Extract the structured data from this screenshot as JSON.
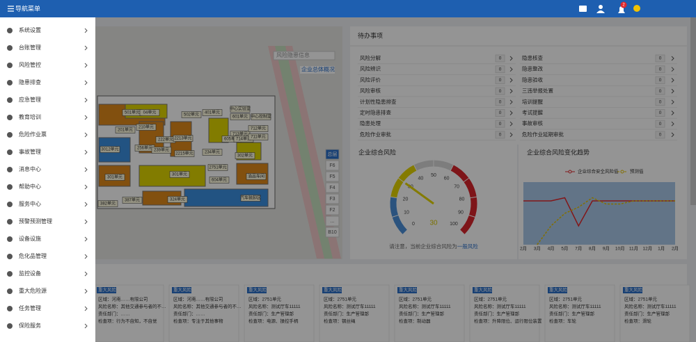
{
  "header": {
    "title": "导航菜单",
    "badge": "2"
  },
  "sidebar": {
    "items": [
      "系统设置",
      "台账管理",
      "风险管控",
      "隐患排查",
      "应急管理",
      "教育培训",
      "危险作业票",
      "事故管理",
      "消息中心",
      "帮助中心",
      "服务中心",
      "预警预测管理",
      "设备设施",
      "危化品管理",
      "监控设备",
      "重大危险源",
      "任务管理",
      "保险服务"
    ]
  },
  "map": {
    "dropdown": "风险隐患信息",
    "overview_button": "企业总体概况",
    "floors": [
      "总层",
      "F6",
      "F5",
      "F4",
      "F3",
      "F2",
      "...",
      "B10"
    ],
    "labels": [
      "501单元",
      "04单元",
      "502单元",
      "401单元",
      "中心实验室",
      "601单元",
      "中心控制室",
      "201单元",
      "210单元",
      "222单元",
      "2213单元",
      "256单元",
      "239单元",
      "2215单元",
      "713单元",
      "712单元",
      "605单元",
      "714单元",
      "711单元",
      "3012单元",
      "234单元",
      "302单元",
      "2751单元",
      "301单元",
      "604单元",
      "油品车间",
      "301单元",
      "382单元",
      "387单元",
      "324单元",
      "汽车装卸区"
    ]
  },
  "todo": {
    "title": "待办事项",
    "left": [
      {
        "label": "风险分解",
        "count": 0
      },
      {
        "label": "风险辨识",
        "count": 0
      },
      {
        "label": "风险评价",
        "count": 0
      },
      {
        "label": "风险审核",
        "count": 0
      },
      {
        "label": "计划性隐患排查",
        "count": 0
      },
      {
        "label": "定时隐患排查",
        "count": 0
      },
      {
        "label": "隐患处理",
        "count": 0
      },
      {
        "label": "危险作业审批",
        "count": 0
      }
    ],
    "right": [
      {
        "label": "隐患核查",
        "count": 0
      },
      {
        "label": "隐患整改",
        "count": 0
      },
      {
        "label": "隐患验收",
        "count": 0
      },
      {
        "label": "三违举报处置",
        "count": 0
      },
      {
        "label": "培训提醒",
        "count": 0
      },
      {
        "label": "考试提醒",
        "count": 0
      },
      {
        "label": "事故审核",
        "count": 0
      },
      {
        "label": "危险作业延期审批",
        "count": 0
      }
    ]
  },
  "chart_data": [
    {
      "type": "gauge",
      "title": "企业综合风险",
      "ylim": [
        0,
        100
      ],
      "yticks": [
        0,
        10,
        20,
        30,
        40,
        50,
        60,
        70,
        80,
        90,
        100
      ],
      "value": 30,
      "bands": [
        {
          "to": 20,
          "color": "#4a90d9"
        },
        {
          "to": 40,
          "color": "#e3d400"
        },
        {
          "to": 60,
          "color": "#d8d8d8"
        },
        {
          "to": 100,
          "color": "#d9252b"
        }
      ],
      "note": "请注意，当前企业综合风险为",
      "level": "一般风险"
    },
    {
      "type": "line",
      "title": "企业综合风险变化趋势",
      "categories": [
        "2月",
        "3月",
        "4月",
        "5月",
        "7月",
        "8月",
        "9月",
        "10月",
        "11月",
        "12月",
        "1月",
        "2月"
      ],
      "ylim": [
        0,
        100
      ],
      "series": [
        {
          "name": "企业综合安全风险值",
          "color": "#e0262b",
          "dash": false,
          "values": [
            70,
            70,
            70,
            75,
            30,
            70,
            70,
            70,
            70,
            70,
            70,
            70
          ]
        },
        {
          "name": "预测值",
          "color": "#e3c000",
          "dash": true,
          "values": [
            null,
            0,
            30,
            50,
            60,
            75,
            65,
            65,
            70,
            70,
            70,
            70
          ]
        }
      ]
    }
  ],
  "risk_cards": [
    {
      "tag": "重大风险",
      "lines": [
        "区域：河南……有限公司",
        "风险名称：其他交通参与者的不…",
        "责任部门：……",
        "检查项：行为不自知，不自觉"
      ]
    },
    {
      "tag": "重大风险",
      "lines": [
        "区域：河南……有限公司",
        "风险名称：其他交通参与者的不…",
        "责任部门：……",
        "检查项：专注于其他事物"
      ]
    },
    {
      "tag": "重大风险",
      "lines": [
        "区域：2751单元",
        "风险名称：测试厅车11111",
        "责任部门：生产管理部",
        "检查项：电源、操控手柄"
      ]
    },
    {
      "tag": "重大风险",
      "lines": [
        "区域：2751单元",
        "风险名称：测试厅车11111",
        "责任部门：生产管理部",
        "检查项：钢丝绳"
      ]
    },
    {
      "tag": "重大风险",
      "lines": [
        "区域：2751单元",
        "风险名称：测试厅车11111",
        "责任部门：生产管理部",
        "检查项：制动器"
      ]
    },
    {
      "tag": "重大风险",
      "lines": [
        "区域：2751单元",
        "风险名称：测试厅车11111",
        "责任部门：生产管理部",
        "检查项：升降限位、运行限位装置"
      ]
    },
    {
      "tag": "重大风险",
      "lines": [
        "区域：2751单元",
        "风险名称：测试厅车11111",
        "责任部门：生产管理部",
        "检查项：车轮"
      ]
    },
    {
      "tag": "重大风险",
      "lines": [
        "区域：2751单元",
        "风险名称：测试厅车11111",
        "责任部门：生产管理部",
        "检查项：滑轮"
      ]
    }
  ]
}
